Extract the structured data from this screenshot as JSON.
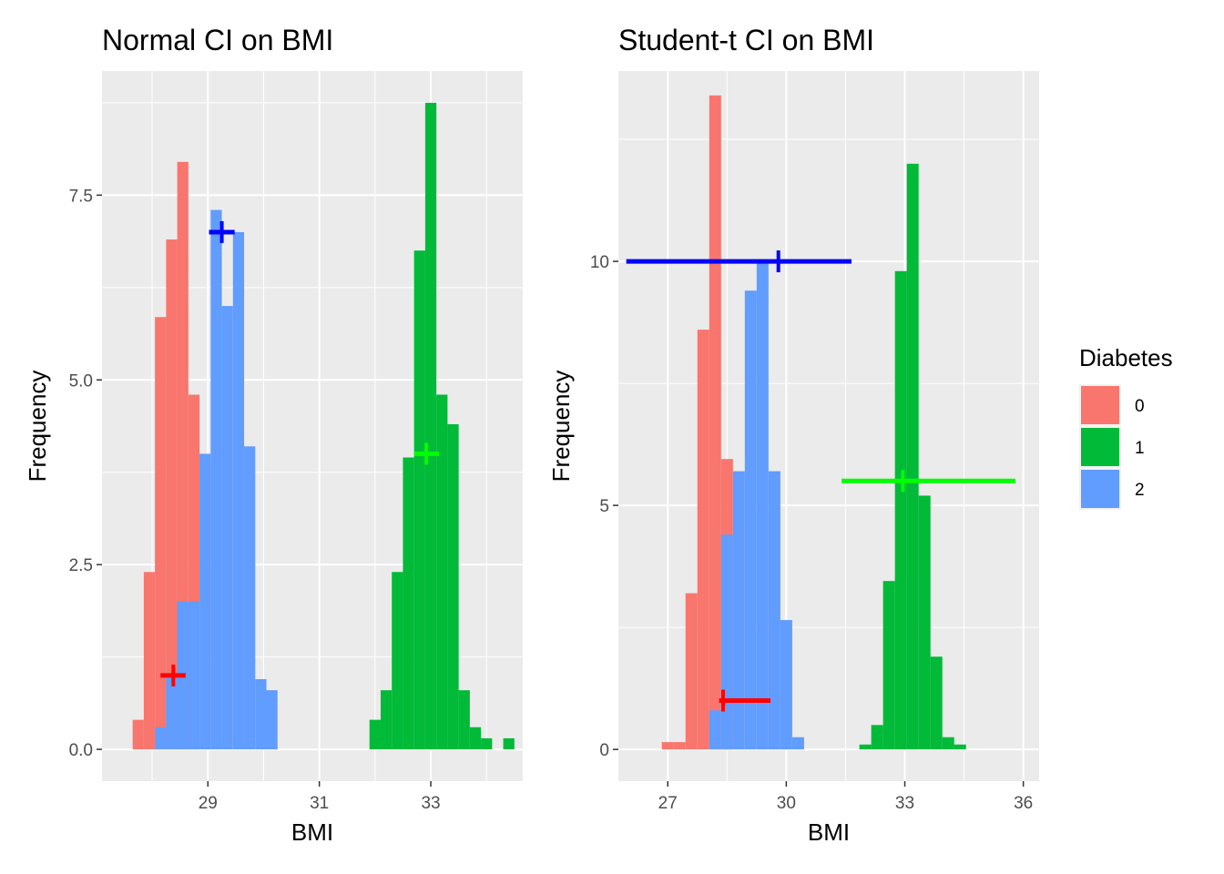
{
  "legend": {
    "title": "Diabetes",
    "items": [
      {
        "label": "0",
        "color": "#F8766D"
      },
      {
        "label": "1",
        "color": "#00BA38"
      },
      {
        "label": "2",
        "color": "#619CFF"
      }
    ]
  },
  "chart_data": [
    {
      "type": "bar",
      "subtype": "histogram",
      "title": "Normal CI on BMI",
      "xlabel": "BMI",
      "ylabel": "Frequency",
      "xlim": [
        27.1,
        34.65
      ],
      "ylim": [
        -0.43,
        9.18
      ],
      "xticks": [
        {
          "value": 29,
          "label": "29"
        },
        {
          "value": 31,
          "label": "31"
        },
        {
          "value": 33,
          "label": "33"
        }
      ],
      "yticks": [
        {
          "value": 0,
          "label": "0.0"
        },
        {
          "value": 2.5,
          "label": "2.5"
        },
        {
          "value": 5,
          "label": "5.0"
        },
        {
          "value": 7.5,
          "label": "7.5"
        }
      ],
      "grid": true,
      "series": [
        {
          "name": "0",
          "color": "#F8766D",
          "bins": [
            {
              "x0": 27.65,
              "x1": 27.85,
              "y": 0.4
            },
            {
              "x0": 27.85,
              "x1": 28.05,
              "y": 2.4
            },
            {
              "x0": 28.05,
              "x1": 28.25,
              "y": 5.85
            },
            {
              "x0": 28.25,
              "x1": 28.45,
              "y": 6.9
            },
            {
              "x0": 28.45,
              "x1": 28.65,
              "y": 7.95
            },
            {
              "x0": 28.65,
              "x1": 28.85,
              "y": 4.8
            }
          ]
        },
        {
          "name": "2",
          "color": "#619CFF",
          "bins": [
            {
              "x0": 28.05,
              "x1": 28.25,
              "y": 0.3
            },
            {
              "x0": 28.25,
              "x1": 28.45,
              "y": 1.0
            },
            {
              "x0": 28.45,
              "x1": 28.65,
              "y": 2.0
            },
            {
              "x0": 28.65,
              "x1": 28.85,
              "y": 2.0
            },
            {
              "x0": 28.85,
              "x1": 29.05,
              "y": 4.0
            },
            {
              "x0": 29.05,
              "x1": 29.25,
              "y": 7.3
            },
            {
              "x0": 29.25,
              "x1": 29.45,
              "y": 6.0
            },
            {
              "x0": 29.45,
              "x1": 29.65,
              "y": 7.0
            },
            {
              "x0": 29.65,
              "x1": 29.85,
              "y": 4.1
            },
            {
              "x0": 29.85,
              "x1": 30.05,
              "y": 0.95
            },
            {
              "x0": 30.05,
              "x1": 30.25,
              "y": 0.8
            }
          ]
        },
        {
          "name": "1",
          "color": "#00BA38",
          "bins": [
            {
              "x0": 31.9,
              "x1": 32.1,
              "y": 0.4
            },
            {
              "x0": 32.1,
              "x1": 32.3,
              "y": 0.8
            },
            {
              "x0": 32.3,
              "x1": 32.5,
              "y": 2.4
            },
            {
              "x0": 32.5,
              "x1": 32.7,
              "y": 3.95
            },
            {
              "x0": 32.7,
              "x1": 32.9,
              "y": 6.75
            },
            {
              "x0": 32.9,
              "x1": 33.1,
              "y": 8.75
            },
            {
              "x0": 33.1,
              "x1": 33.3,
              "y": 4.8
            },
            {
              "x0": 33.3,
              "x1": 33.5,
              "y": 4.4
            },
            {
              "x0": 33.5,
              "x1": 33.7,
              "y": 0.8
            },
            {
              "x0": 33.7,
              "x1": 33.9,
              "y": 0.3
            },
            {
              "x0": 33.9,
              "x1": 34.1,
              "y": 0.15
            },
            {
              "x0": 34.3,
              "x1": 34.5,
              "y": 0.15
            }
          ]
        }
      ],
      "ci_markers": [
        {
          "group": "0",
          "color": "#FF0000",
          "mean": 28.38,
          "lower": 28.15,
          "upper": 28.6,
          "y": 1.0
        },
        {
          "group": "2",
          "color": "#0000FF",
          "mean": 29.25,
          "lower": 29.02,
          "upper": 29.48,
          "y": 7.0
        },
        {
          "group": "1",
          "color": "#00FF00",
          "mean": 32.92,
          "lower": 32.7,
          "upper": 33.15,
          "y": 4.0
        }
      ]
    },
    {
      "type": "bar",
      "subtype": "histogram",
      "title": "Student-t CI on BMI",
      "xlabel": "BMI",
      "ylabel": "Frequency",
      "xlim": [
        25.75,
        36.4
      ],
      "ylim": [
        -0.65,
        13.9
      ],
      "xticks": [
        {
          "value": 27,
          "label": "27"
        },
        {
          "value": 30,
          "label": "30"
        },
        {
          "value": 33,
          "label": "33"
        },
        {
          "value": 36,
          "label": "36"
        }
      ],
      "yticks": [
        {
          "value": 0,
          "label": "0"
        },
        {
          "value": 5,
          "label": "5"
        },
        {
          "value": 10,
          "label": "10"
        }
      ],
      "grid": true,
      "series": [
        {
          "name": "0",
          "color": "#F8766D",
          "bins": [
            {
              "x0": 26.85,
              "x1": 27.15,
              "y": 0.15
            },
            {
              "x0": 27.15,
              "x1": 27.45,
              "y": 0.15
            },
            {
              "x0": 27.45,
              "x1": 27.75,
              "y": 3.2
            },
            {
              "x0": 27.75,
              "x1": 28.05,
              "y": 8.6
            },
            {
              "x0": 28.05,
              "x1": 28.35,
              "y": 13.4
            },
            {
              "x0": 28.35,
              "x1": 28.65,
              "y": 5.95
            }
          ]
        },
        {
          "name": "2",
          "color": "#619CFF",
          "bins": [
            {
              "x0": 28.05,
              "x1": 28.35,
              "y": 0.8
            },
            {
              "x0": 28.35,
              "x1": 28.65,
              "y": 4.4
            },
            {
              "x0": 28.65,
              "x1": 28.95,
              "y": 5.7
            },
            {
              "x0": 28.95,
              "x1": 29.25,
              "y": 9.4
            },
            {
              "x0": 29.25,
              "x1": 29.55,
              "y": 10.0
            },
            {
              "x0": 29.55,
              "x1": 29.85,
              "y": 5.7
            },
            {
              "x0": 29.85,
              "x1": 30.15,
              "y": 2.65
            },
            {
              "x0": 30.15,
              "x1": 30.45,
              "y": 0.25
            }
          ]
        },
        {
          "name": "1",
          "color": "#00BA38",
          "bins": [
            {
              "x0": 31.85,
              "x1": 32.15,
              "y": 0.1
            },
            {
              "x0": 32.15,
              "x1": 32.45,
              "y": 0.5
            },
            {
              "x0": 32.45,
              "x1": 32.75,
              "y": 3.45
            },
            {
              "x0": 32.75,
              "x1": 33.05,
              "y": 9.8
            },
            {
              "x0": 33.05,
              "x1": 33.35,
              "y": 12.0
            },
            {
              "x0": 33.35,
              "x1": 33.65,
              "y": 5.2
            },
            {
              "x0": 33.65,
              "x1": 33.95,
              "y": 1.9
            },
            {
              "x0": 33.95,
              "x1": 34.25,
              "y": 0.25
            },
            {
              "x0": 34.25,
              "x1": 34.55,
              "y": 0.1
            }
          ]
        }
      ],
      "ci_markers": [
        {
          "group": "0",
          "color": "#FF0000",
          "mean": 28.4,
          "lower": 28.3,
          "upper": 29.6,
          "y": 1.0
        },
        {
          "group": "2",
          "color": "#0000FF",
          "mean": 29.8,
          "lower": 25.95,
          "upper": 31.65,
          "y": 10.0
        },
        {
          "group": "1",
          "color": "#00FF00",
          "mean": 32.95,
          "lower": 31.4,
          "upper": 35.8,
          "y": 5.5
        }
      ]
    }
  ]
}
